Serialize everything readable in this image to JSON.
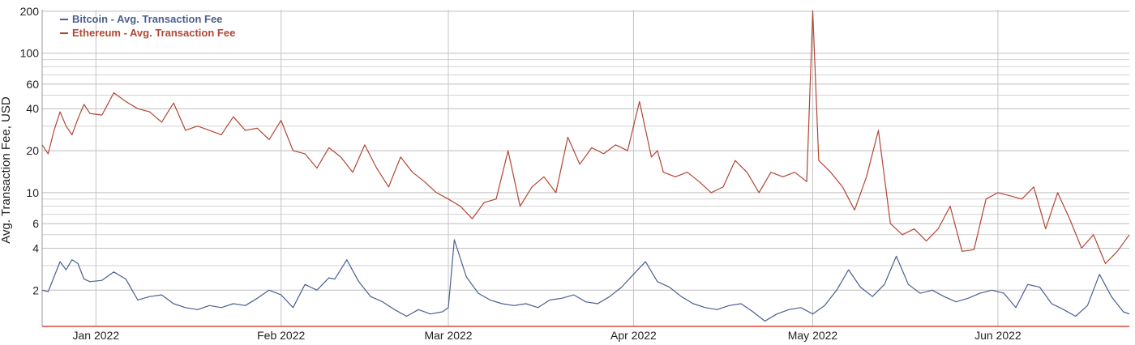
{
  "chart_data": {
    "type": "line",
    "title": "",
    "xlabel": "",
    "ylabel": "Avg. Transaction Fee, USD",
    "yscale": "log",
    "ylim": [
      1.1,
      205
    ],
    "xlim": [
      "2021-12-23",
      "2022-06-23"
    ],
    "grid": true,
    "legend_position": "top-left",
    "y_ticks": [
      2,
      4,
      6,
      10,
      20,
      40,
      60,
      100,
      200
    ],
    "y_minor_gridlines": [
      3,
      5,
      7,
      8,
      9,
      30,
      50,
      70,
      80,
      90
    ],
    "x_ticks": [
      {
        "date": "2022-01-01",
        "label": "Jan 2022"
      },
      {
        "date": "2022-02-01",
        "label": "Feb 2022"
      },
      {
        "date": "2022-03-01",
        "label": "Mar 2022"
      },
      {
        "date": "2022-04-01",
        "label": "Apr 2022"
      },
      {
        "date": "2022-05-01",
        "label": "May 2022"
      },
      {
        "date": "2022-06-01",
        "label": "Jun 2022"
      }
    ],
    "series": [
      {
        "name": "Bitcoin - Avg. Transaction Fee",
        "color": "#4a5f91",
        "x": [
          "2021-12-23",
          "2021-12-24",
          "2021-12-25",
          "2021-12-26",
          "2021-12-27",
          "2021-12-28",
          "2021-12-29",
          "2021-12-30",
          "2021-12-31",
          "2022-01-02",
          "2022-01-04",
          "2022-01-06",
          "2022-01-08",
          "2022-01-10",
          "2022-01-12",
          "2022-01-14",
          "2022-01-16",
          "2022-01-18",
          "2022-01-20",
          "2022-01-22",
          "2022-01-24",
          "2022-01-26",
          "2022-01-28",
          "2022-01-30",
          "2022-02-01",
          "2022-02-03",
          "2022-02-05",
          "2022-02-07",
          "2022-02-09",
          "2022-02-10",
          "2022-02-12",
          "2022-02-14",
          "2022-02-16",
          "2022-02-18",
          "2022-02-20",
          "2022-02-22",
          "2022-02-24",
          "2022-02-26",
          "2022-02-28",
          "2022-03-01",
          "2022-03-02",
          "2022-03-04",
          "2022-03-06",
          "2022-03-08",
          "2022-03-10",
          "2022-03-12",
          "2022-03-14",
          "2022-03-16",
          "2022-03-18",
          "2022-03-20",
          "2022-03-22",
          "2022-03-24",
          "2022-03-26",
          "2022-03-28",
          "2022-03-30",
          "2022-04-01",
          "2022-04-03",
          "2022-04-05",
          "2022-04-07",
          "2022-04-09",
          "2022-04-11",
          "2022-04-13",
          "2022-04-15",
          "2022-04-17",
          "2022-04-19",
          "2022-04-21",
          "2022-04-23",
          "2022-04-25",
          "2022-04-27",
          "2022-04-29",
          "2022-05-01",
          "2022-05-03",
          "2022-05-05",
          "2022-05-07",
          "2022-05-09",
          "2022-05-11",
          "2022-05-13",
          "2022-05-15",
          "2022-05-17",
          "2022-05-19",
          "2022-05-21",
          "2022-05-23",
          "2022-05-25",
          "2022-05-27",
          "2022-05-29",
          "2022-05-31",
          "2022-06-02",
          "2022-06-04",
          "2022-06-06",
          "2022-06-08",
          "2022-06-10",
          "2022-06-12",
          "2022-06-14",
          "2022-06-16",
          "2022-06-18",
          "2022-06-20",
          "2022-06-22",
          "2022-06-23"
        ],
        "values": [
          2.0,
          1.95,
          2.5,
          3.2,
          2.8,
          3.3,
          3.1,
          2.4,
          2.3,
          2.35,
          2.7,
          2.4,
          1.7,
          1.8,
          1.85,
          1.6,
          1.5,
          1.45,
          1.55,
          1.5,
          1.6,
          1.55,
          1.75,
          2.0,
          1.85,
          1.5,
          2.2,
          2.0,
          2.45,
          2.4,
          3.3,
          2.3,
          1.8,
          1.65,
          1.45,
          1.3,
          1.45,
          1.35,
          1.4,
          1.5,
          4.6,
          2.5,
          1.9,
          1.7,
          1.6,
          1.55,
          1.6,
          1.5,
          1.7,
          1.75,
          1.85,
          1.65,
          1.6,
          1.8,
          2.1,
          2.6,
          3.2,
          2.3,
          2.1,
          1.8,
          1.6,
          1.5,
          1.45,
          1.55,
          1.6,
          1.4,
          1.2,
          1.35,
          1.45,
          1.5,
          1.35,
          1.55,
          2.0,
          2.8,
          2.1,
          1.8,
          2.2,
          3.5,
          2.2,
          1.9,
          2.0,
          1.8,
          1.65,
          1.75,
          1.9,
          2.0,
          1.9,
          1.5,
          2.2,
          2.1,
          1.6,
          1.45,
          1.3,
          1.55,
          2.6,
          1.8,
          1.4,
          1.35
        ]
      },
      {
        "name": "Ethereum - Avg. Transaction Fee",
        "color": "#b24634",
        "x": [
          "2021-12-23",
          "2021-12-24",
          "2021-12-25",
          "2021-12-26",
          "2021-12-27",
          "2021-12-28",
          "2021-12-29",
          "2021-12-30",
          "2021-12-31",
          "2022-01-02",
          "2022-01-04",
          "2022-01-06",
          "2022-01-08",
          "2022-01-10",
          "2022-01-12",
          "2022-01-14",
          "2022-01-16",
          "2022-01-18",
          "2022-01-20",
          "2022-01-22",
          "2022-01-24",
          "2022-01-26",
          "2022-01-28",
          "2022-01-30",
          "2022-02-01",
          "2022-02-03",
          "2022-02-05",
          "2022-02-07",
          "2022-02-09",
          "2022-02-11",
          "2022-02-13",
          "2022-02-15",
          "2022-02-17",
          "2022-02-19",
          "2022-02-21",
          "2022-02-23",
          "2022-02-25",
          "2022-02-27",
          "2022-03-01",
          "2022-03-03",
          "2022-03-05",
          "2022-03-07",
          "2022-03-09",
          "2022-03-11",
          "2022-03-13",
          "2022-03-15",
          "2022-03-17",
          "2022-03-19",
          "2022-03-21",
          "2022-03-23",
          "2022-03-25",
          "2022-03-27",
          "2022-03-29",
          "2022-03-31",
          "2022-04-02",
          "2022-04-04",
          "2022-04-05",
          "2022-04-06",
          "2022-04-08",
          "2022-04-10",
          "2022-04-12",
          "2022-04-14",
          "2022-04-16",
          "2022-04-18",
          "2022-04-20",
          "2022-04-22",
          "2022-04-24",
          "2022-04-26",
          "2022-04-28",
          "2022-04-30",
          "2022-05-01",
          "2022-05-02",
          "2022-05-04",
          "2022-05-06",
          "2022-05-08",
          "2022-05-10",
          "2022-05-12",
          "2022-05-14",
          "2022-05-16",
          "2022-05-18",
          "2022-05-20",
          "2022-05-22",
          "2022-05-24",
          "2022-05-26",
          "2022-05-28",
          "2022-05-30",
          "2022-06-01",
          "2022-06-03",
          "2022-06-05",
          "2022-06-07",
          "2022-06-09",
          "2022-06-11",
          "2022-06-13",
          "2022-06-15",
          "2022-06-17",
          "2022-06-19",
          "2022-06-21",
          "2022-06-23"
        ],
        "values": [
          22,
          19,
          28,
          38,
          30,
          26,
          34,
          43,
          37,
          36,
          52,
          45,
          40,
          38,
          32,
          44,
          28,
          30,
          28,
          26,
          35,
          28,
          29,
          24,
          33,
          20,
          19,
          15,
          21,
          18,
          14,
          22,
          15,
          11,
          18,
          14,
          12,
          10,
          9,
          8,
          6.5,
          8.5,
          9,
          20,
          8,
          11,
          13,
          10,
          25,
          16,
          21,
          19,
          22,
          20,
          45,
          18,
          20,
          14,
          13,
          14,
          12,
          10,
          11,
          17,
          14,
          10,
          14,
          13,
          14,
          12,
          200,
          17,
          14,
          11,
          7.5,
          13,
          28,
          6,
          5,
          5.5,
          4.5,
          5.5,
          8,
          3.8,
          3.9,
          9,
          10,
          9.5,
          9,
          11,
          5.5,
          10,
          6.5,
          4,
          5,
          3.1,
          3.8,
          5
        ]
      }
    ]
  }
}
